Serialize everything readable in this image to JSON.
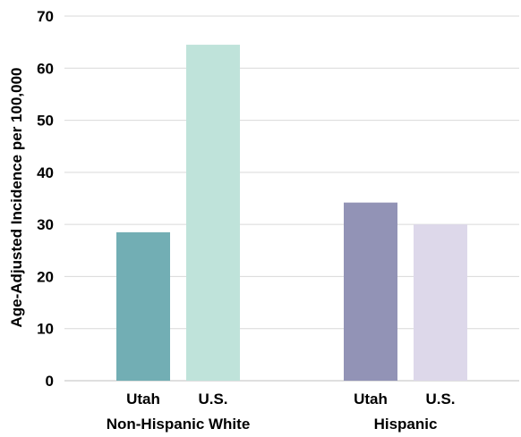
{
  "chart_data": {
    "type": "bar",
    "title": "",
    "xlabel": "",
    "ylabel": "Age-Adjusted Incidence per 100,000",
    "ylim": [
      0,
      70
    ],
    "yticks": [
      0,
      10,
      20,
      30,
      40,
      50,
      60,
      70
    ],
    "grid": true,
    "groups": [
      {
        "name": "Non-Hispanic White",
        "bars": [
          {
            "label": "Utah",
            "value": 28.5,
            "color": "#72aeb4"
          },
          {
            "label": "U.S.",
            "value": 64.5,
            "color": "#bfe3da"
          }
        ]
      },
      {
        "name": "Hispanic",
        "bars": [
          {
            "label": "Utah",
            "value": 34.2,
            "color": "#9293b6"
          },
          {
            "label": "U.S.",
            "value": 30.0,
            "color": "#ddd8ea"
          }
        ]
      }
    ]
  }
}
